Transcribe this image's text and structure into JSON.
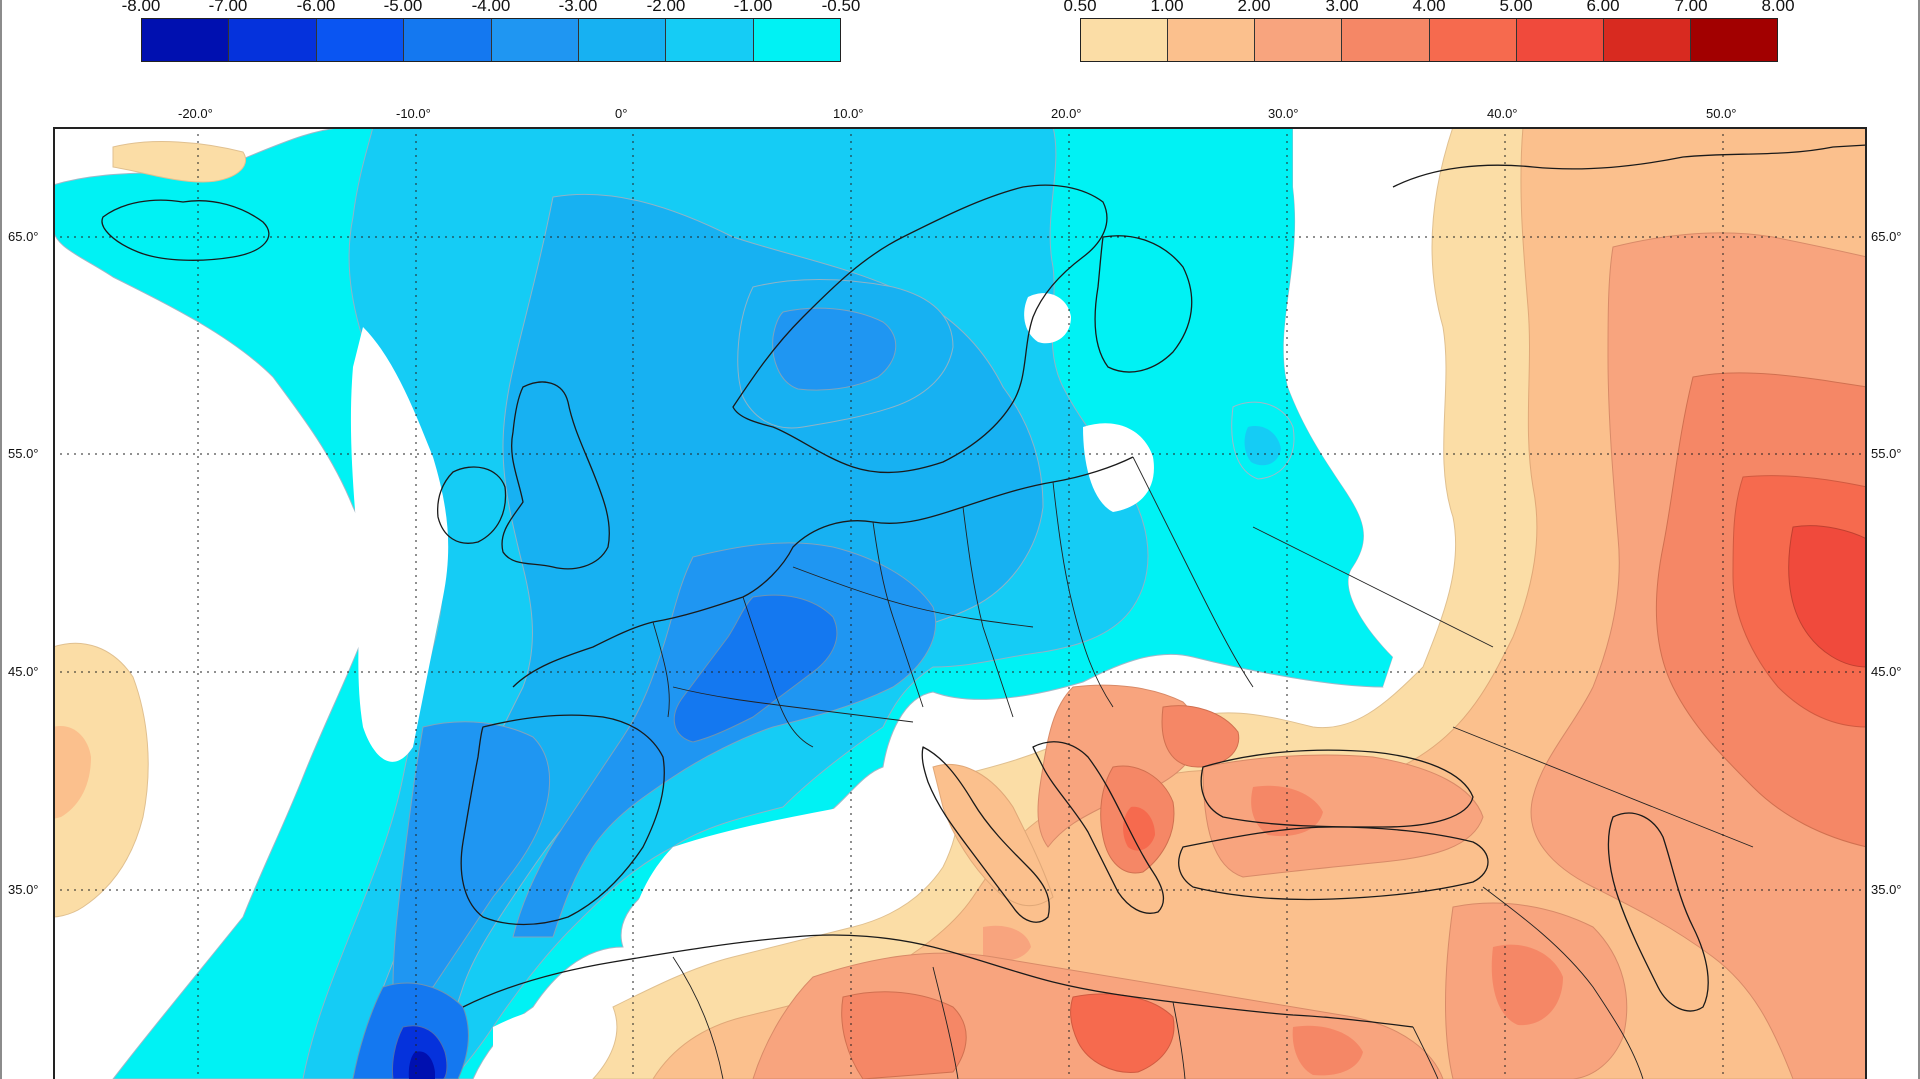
{
  "legend_negative": {
    "labels": [
      "-8.00",
      "-7.00",
      "-6.00",
      "-5.00",
      "-4.00",
      "-3.00",
      "-2.00",
      "-1.00",
      "-0.50"
    ],
    "colors": [
      "#0010b0",
      "#0532dc",
      "#0a55f2",
      "#1478f0",
      "#1f96f2",
      "#17b1f2",
      "#15ccf5",
      "#00f2f4"
    ]
  },
  "legend_positive": {
    "labels": [
      "0.50",
      "1.00",
      "2.00",
      "3.00",
      "4.00",
      "5.00",
      "6.00",
      "7.00",
      "8.00"
    ],
    "colors": [
      "#fbdda6",
      "#fbc08d",
      "#f8a47e",
      "#f58766",
      "#f66a4e",
      "#f04a3c",
      "#d82a20",
      "#a20000"
    ]
  },
  "longitude_labels": [
    "-20.0°",
    "-10.0°",
    "0°",
    "10.0°",
    "20.0°",
    "30.0°",
    "40.0°",
    "50.0°"
  ],
  "latitude_labels": [
    "65.0°",
    "55.0°",
    "45.0°",
    "35.0°"
  ]
}
